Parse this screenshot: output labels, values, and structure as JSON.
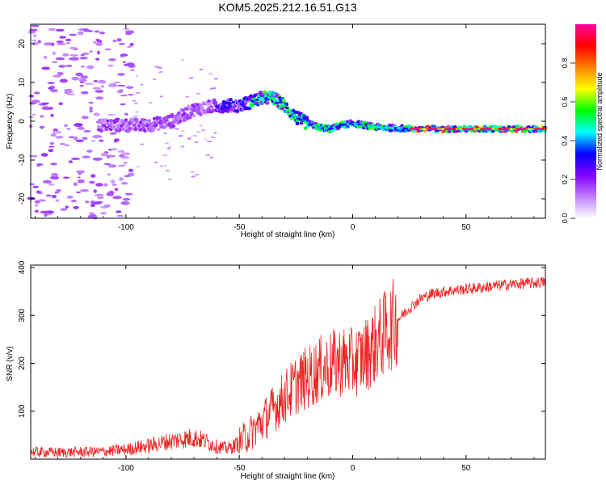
{
  "figure_title": "KOM5.2025.212.16.51.G13",
  "chart_data": [
    {
      "type": "heatmap",
      "xlabel": "Height of straight line (km)",
      "ylabel": "Frequency (Hz)",
      "xlim": [
        -142,
        85
      ],
      "ylim": [
        -25,
        25
      ],
      "xticks": [
        -100,
        -50,
        0,
        50
      ],
      "yticks": [
        -20,
        -10,
        0,
        10,
        20
      ],
      "grid": false,
      "colorbar": {
        "label": "Normalized spectral amplitude",
        "range": [
          0,
          1
        ],
        "ticks": [
          "0.0",
          "0.2",
          "0.4",
          "0.6",
          "0.8"
        ],
        "colors": [
          "#ffffff",
          "#c080ff",
          "#8000ff",
          "#0000ff",
          "#00ffff",
          "#00ff00",
          "#ffff00",
          "#ff8000",
          "#ff0000",
          "#ff00a0"
        ]
      },
      "ridge": {
        "x": [
          -110,
          -100,
          -90,
          -80,
          -70,
          -60,
          -50,
          -45,
          -40,
          -35,
          -30,
          -25,
          -20,
          -15,
          -10,
          -5,
          0,
          5,
          10,
          20,
          30,
          40,
          50,
          60,
          70,
          80,
          85
        ],
        "y": [
          -1,
          -1,
          -1,
          0,
          3,
          4,
          4,
          5,
          6,
          6,
          4,
          1,
          -0.5,
          -1.5,
          -2,
          -1,
          -0.5,
          -1,
          -1.5,
          -1.8,
          -2,
          -2,
          -2,
          -2,
          -2,
          -2,
          -2
        ]
      }
    },
    {
      "type": "line",
      "xlabel": "Height of straight line (km)",
      "ylabel": "SNR (v/v)",
      "xlim": [
        -142,
        85
      ],
      "ylim": [
        0,
        405
      ],
      "xticks": [
        -100,
        -50,
        0,
        50
      ],
      "yticks": [
        100,
        200,
        300,
        400
      ],
      "grid": false,
      "color": "#ee2222",
      "series": [
        {
          "x": [
            -142,
            -130,
            -120,
            -110,
            -100,
            -90,
            -80,
            -75,
            -70,
            -65,
            -60,
            -55,
            -50,
            -45,
            -40,
            -35,
            -30,
            -25,
            -20,
            -15,
            -10,
            -5,
            0,
            5,
            10,
            15,
            20,
            25,
            30,
            35,
            40,
            50,
            60,
            70,
            80,
            85
          ],
          "values": [
            15,
            14,
            15,
            16,
            20,
            28,
            38,
            42,
            45,
            38,
            26,
            22,
            34,
            55,
            78,
            105,
            130,
            155,
            170,
            185,
            195,
            205,
            200,
            215,
            240,
            268,
            292,
            315,
            335,
            345,
            350,
            355,
            360,
            365,
            368,
            370
          ]
        }
      ]
    }
  ]
}
